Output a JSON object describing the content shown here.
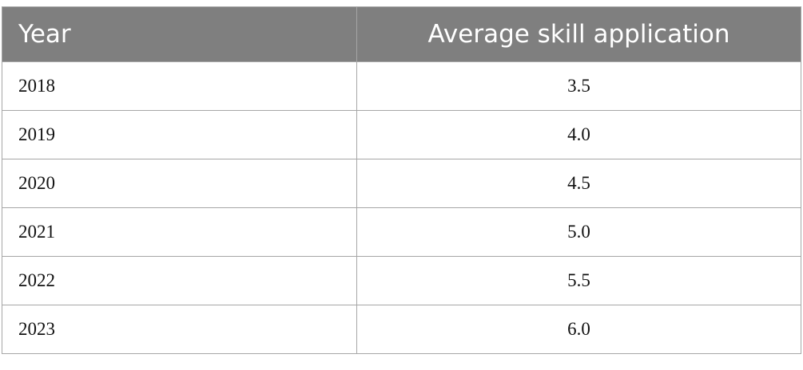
{
  "table": {
    "header": [
      "Year",
      "Average skill application"
    ],
    "rows": [
      [
        "2018",
        "3.5"
      ],
      [
        "2019",
        "4.0"
      ],
      [
        "2020",
        "4.5"
      ],
      [
        "2021",
        "5.0"
      ],
      [
        "2022",
        "5.5"
      ],
      [
        "2023",
        "6.0"
      ]
    ]
  }
}
